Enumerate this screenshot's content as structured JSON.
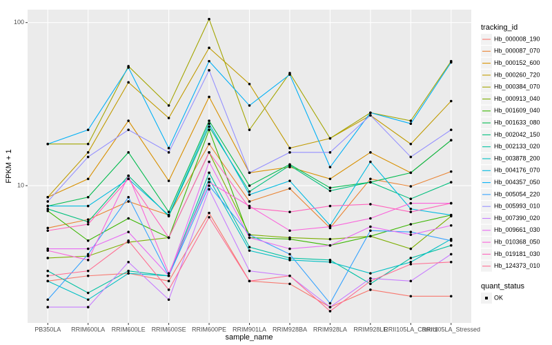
{
  "chart_data": {
    "type": "line",
    "x_label": "sample_name",
    "y_label": "FPKM + 1",
    "log_y": true,
    "grid": true,
    "legend_title": "tracking_id",
    "legend2_title": "quant_status",
    "legend2_entry": "OK",
    "point_color": "#000000",
    "categories": [
      "PB350LA",
      "RRIM600LA",
      "RRIM600LE",
      "RRIM600SE",
      "RRIM600PE",
      "RRIM901LA",
      "RRIM928BA",
      "RRIM928LA",
      "RRIM928LE",
      "RRII105LA_Control",
      "RRII105LA_Stressed"
    ],
    "ylim": [
      1.44,
      120
    ],
    "yticks": [
      10,
      100
    ],
    "series": [
      {
        "name": "Hb_000008_190",
        "color": "#F8766D",
        "values": [
          2.6,
          2.8,
          2.9,
          2.6,
          6.8,
          2.6,
          2.5,
          1.8,
          2.3,
          2.1,
          2.1
        ]
      },
      {
        "name": "Hb_000087_070",
        "color": "#EA8331",
        "values": [
          5.5,
          6.2,
          8.0,
          6.6,
          18,
          8.0,
          9.6,
          5.5,
          11,
          9.9,
          12.2
        ]
      },
      {
        "name": "Hb_000152_600",
        "color": "#D89000",
        "values": [
          8.5,
          11,
          25,
          10.7,
          35,
          12,
          13,
          11,
          16,
          12,
          19
        ]
      },
      {
        "name": "Hb_000260_720",
        "color": "#C09B00",
        "values": [
          8.5,
          16,
          43,
          26,
          70,
          42,
          17,
          19.5,
          27,
          18,
          33
        ]
      },
      {
        "name": "Hb_000384_070",
        "color": "#A3A500",
        "values": [
          18,
          18,
          54,
          31,
          105,
          22,
          49,
          19.5,
          28,
          25,
          58
        ]
      },
      {
        "name": "Hb_000913_040",
        "color": "#7CAE00",
        "values": [
          3.6,
          3.7,
          4.5,
          4.8,
          16,
          5,
          4.8,
          4.7,
          4.9,
          4.1,
          6.5
        ]
      },
      {
        "name": "Hb_001609_040",
        "color": "#39B600",
        "values": [
          7.0,
          4.6,
          6.3,
          4.8,
          22,
          4.8,
          4.7,
          4.3,
          4.9,
          5.8,
          6.6
        ]
      },
      {
        "name": "Hb_001633_080",
        "color": "#00BB4E",
        "values": [
          7.5,
          8.5,
          16,
          6.9,
          25,
          10,
          13.5,
          9.7,
          10.5,
          12,
          19
        ]
      },
      {
        "name": "Hb_002042_150",
        "color": "#00BF7D",
        "values": [
          7.2,
          6.0,
          11.5,
          6.5,
          23,
          9.2,
          13.3,
          9.3,
          10.5,
          8.3,
          10.5
        ]
      },
      {
        "name": "Hb_002133_020",
        "color": "#00C1A3",
        "values": [
          3.0,
          2.2,
          3.0,
          2.8,
          12,
          4.2,
          3.6,
          3.5,
          2.5,
          3.6,
          4.3
        ]
      },
      {
        "name": "Hb_003878_200",
        "color": "#00BFC4",
        "values": [
          2.6,
          2.0,
          2.9,
          2.8,
          11,
          4.0,
          3.5,
          3.4,
          2.9,
          3.4,
          4.7
        ]
      },
      {
        "name": "Hb_004176_070",
        "color": "#00BAE0",
        "values": [
          7.5,
          7.5,
          11,
          6.6,
          24,
          8.8,
          10.7,
          5.7,
          14,
          7.2,
          6.6
        ]
      },
      {
        "name": "Hb_004357_050",
        "color": "#00B0F6",
        "values": [
          18,
          22,
          53,
          17,
          58,
          31,
          48,
          13,
          28,
          24,
          57
        ]
      },
      {
        "name": "Hb_005054_220",
        "color": "#35A2FF",
        "values": [
          2.0,
          3.8,
          8.5,
          2.8,
          10,
          5.0,
          3.8,
          1.9,
          5.3,
          5.2,
          4.6
        ]
      },
      {
        "name": "Hb_005993_010",
        "color": "#9590FF",
        "values": [
          8,
          15,
          22,
          16,
          51,
          12,
          16,
          16,
          27,
          15,
          22
        ]
      },
      {
        "name": "Hb_007390_020",
        "color": "#C77CFF",
        "values": [
          1.8,
          1.8,
          3.4,
          2.0,
          9.5,
          3.0,
          2.8,
          1.8,
          2.7,
          2.6,
          3.8
        ]
      },
      {
        "name": "Hb_009661_030",
        "color": "#E76BF3",
        "values": [
          4.1,
          4.1,
          5.2,
          2.8,
          14,
          4.8,
          4.1,
          4.3,
          5.6,
          5.0,
          5.7
        ]
      },
      {
        "name": "Hb_010368_050",
        "color": "#FA62DB",
        "values": [
          4.0,
          3.5,
          11.5,
          2.9,
          10.5,
          7.5,
          5.3,
          5.6,
          6.3,
          7.8,
          7.8
        ]
      },
      {
        "name": "Hb_019181_030",
        "color": "#FF62BC",
        "values": [
          5.3,
          5.8,
          11,
          4.8,
          16,
          7.3,
          6.9,
          7.5,
          7.7,
          6.9,
          7.8
        ]
      },
      {
        "name": "Hb_124373_010",
        "color": "#FF6C91",
        "values": [
          2.8,
          3.0,
          4.6,
          2.3,
          6.4,
          2.6,
          2.8,
          1.7,
          2.6,
          3.3,
          3.4
        ]
      }
    ]
  }
}
